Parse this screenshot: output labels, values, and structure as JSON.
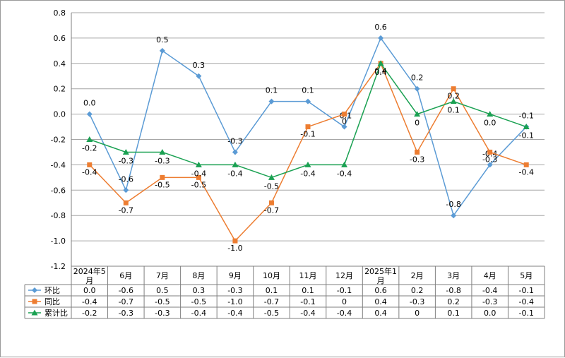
{
  "chart_data": {
    "type": "line",
    "title": "",
    "xlabel": "",
    "ylabel": "",
    "ylim": [
      -1.2,
      0.8
    ],
    "yticks": [
      "0.8",
      "0.6",
      "0.4",
      "0.2",
      "0.0",
      "-0.2",
      "-0.4",
      "-0.6",
      "-0.8",
      "-1.0",
      "-1.2"
    ],
    "grid": true,
    "legend": "data-table",
    "categories": [
      "2024年5月",
      "6月",
      "7月",
      "8月",
      "9月",
      "10月",
      "11月",
      "12月",
      "2025年1月",
      "2月",
      "3月",
      "4月",
      "5月"
    ],
    "series": [
      {
        "name": "环比",
        "color": "#5b9bd5",
        "marker": "diamond",
        "values": [
          0.0,
          -0.6,
          0.5,
          0.3,
          -0.3,
          0.1,
          0.1,
          -0.1,
          0.6,
          0.2,
          -0.8,
          -0.4,
          -0.1
        ],
        "labels": [
          "0.0",
          "-0.6",
          "0.5",
          "0.3",
          "-0.3",
          "0.1",
          "0.1",
          "-0.1",
          "0.6",
          "0.2",
          "-0.8",
          "-0.4",
          "-0.1"
        ]
      },
      {
        "name": "同比",
        "color": "#ed7d31",
        "marker": "square",
        "values": [
          -0.4,
          -0.7,
          -0.5,
          -0.5,
          -1.0,
          -0.7,
          -0.1,
          0,
          0.4,
          -0.3,
          0.2,
          -0.3,
          -0.4
        ],
        "labels": [
          "-0.4",
          "-0.7",
          "-0.5",
          "-0.5",
          "-1.0",
          "-0.7",
          "-0.1",
          "0",
          "0.4",
          "-0.3",
          "0.2",
          "-0.3",
          "-0.4"
        ]
      },
      {
        "name": "累计比",
        "color": "#1aa152",
        "marker": "triangle",
        "values": [
          -0.2,
          -0.3,
          -0.3,
          -0.4,
          -0.4,
          -0.5,
          -0.4,
          -0.4,
          0.4,
          0,
          0.1,
          0.0,
          -0.1
        ],
        "labels": [
          "-0.2",
          "-0.3",
          "-0.3",
          "-0.4",
          "-0.4",
          "-0.5",
          "-0.4",
          "-0.4",
          "0.4",
          "0",
          "0.1",
          "0.0",
          "-0.1"
        ]
      }
    ]
  }
}
